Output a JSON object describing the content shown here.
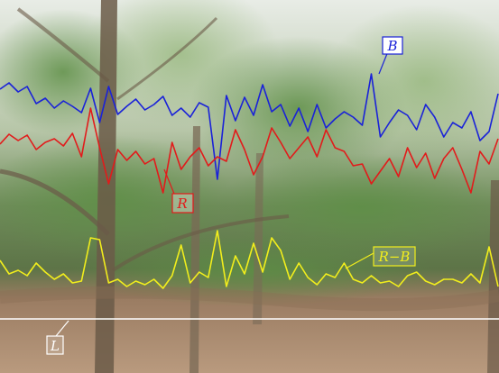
{
  "chart_data": {
    "type": "line",
    "title": "",
    "xlabel": "",
    "ylabel": "",
    "grid": false,
    "ylim": [
      0,
      414
    ],
    "x": [
      0,
      10,
      20,
      30,
      40,
      50,
      60,
      70,
      80,
      90,
      100,
      110,
      120,
      130,
      140,
      150,
      160,
      170,
      180,
      190,
      200,
      210,
      220,
      230,
      240,
      250,
      260,
      270,
      280,
      290,
      300,
      310,
      320,
      330,
      340,
      350,
      360,
      370,
      380,
      390,
      400,
      410,
      420,
      430,
      440,
      450,
      460,
      470,
      480,
      490,
      500,
      510,
      520,
      530,
      540,
      550
    ],
    "series": [
      {
        "name": "B",
        "color": "#1a22d8",
        "values": [
          315,
          322,
          312,
          318,
          299,
          305,
          294,
          302,
          296,
          289,
          316,
          278,
          318,
          287,
          296,
          304,
          292,
          298,
          307,
          286,
          294,
          284,
          300,
          295,
          215,
          308,
          280,
          306,
          286,
          320,
          290,
          298,
          274,
          294,
          268,
          298,
          272,
          282,
          290,
          284,
          275,
          332,
          262,
          278,
          292,
          286,
          270,
          298,
          284,
          262,
          278,
          272,
          290,
          258,
          268,
          310
        ]
      },
      {
        "name": "R",
        "color": "#e21b1b",
        "values": [
          254,
          265,
          258,
          264,
          248,
          256,
          260,
          252,
          266,
          240,
          294,
          250,
          210,
          248,
          236,
          246,
          232,
          238,
          200,
          256,
          226,
          240,
          250,
          230,
          240,
          235,
          270,
          248,
          220,
          240,
          272,
          256,
          238,
          250,
          262,
          240,
          270,
          250,
          246,
          230,
          232,
          210,
          224,
          238,
          218,
          250,
          228,
          244,
          216,
          238,
          250,
          226,
          200,
          246,
          232,
          260
        ]
      },
      {
        "name": "R−B",
        "color": "#f2ee1c",
        "values": [
          125,
          110,
          114,
          108,
          122,
          112,
          104,
          110,
          100,
          102,
          150,
          148,
          100,
          104,
          96,
          102,
          98,
          104,
          94,
          108,
          142,
          100,
          112,
          106,
          158,
          96,
          130,
          110,
          144,
          112,
          150,
          136,
          104,
          122,
          106,
          98,
          110,
          106,
          122,
          104,
          100,
          108,
          100,
          102,
          96,
          108,
          112,
          102,
          98,
          104,
          104,
          100,
          110,
          100,
          140,
          96
        ]
      }
    ],
    "reference_line": {
      "name": "L",
      "color": "#ffffff",
      "y": 60
    }
  }
}
